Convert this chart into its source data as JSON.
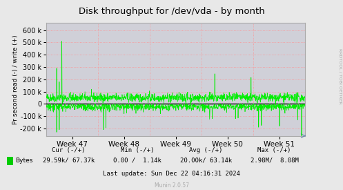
{
  "title": "Disk throughput for /dev/vda - by month",
  "ylabel": "Pr second read (-) / write (+)",
  "xlabel_ticks": [
    "Week 47",
    "Week 48",
    "Week 49",
    "Week 50",
    "Week 51"
  ],
  "ylim": [
    -260000,
    660000
  ],
  "yticks": [
    -200000,
    -100000,
    0,
    100000,
    200000,
    300000,
    400000,
    500000,
    600000
  ],
  "bg_color": "#e8e8e8",
  "plot_bg_color": "#d0d0d8",
  "grid_color": "#ff9090",
  "line_color": "#00ee00",
  "legend_label": "Bytes",
  "legend_color": "#00cc00",
  "footer_bytes_label": "Bytes",
  "footer_cur_header": "Cur (-/+)",
  "footer_min_header": "Min (-/+)",
  "footer_avg_header": "Avg (-/+)",
  "footer_max_header": "Max (-/+)",
  "footer_cur_val": "29.59k/ 67.37k",
  "footer_min_val": "0.00 /  1.14k",
  "footer_avg_val": "20.00k/ 63.14k",
  "footer_max_val": "2.98M/  8.08M",
  "footer_lastupdate": "Last update: Sun Dec 22 04:16:31 2024",
  "munin_label": "Munin 2.0.57",
  "rrdtool_label": "RRDTOOL / TOBI OETIKER",
  "n_points": 1200,
  "seed": 42
}
